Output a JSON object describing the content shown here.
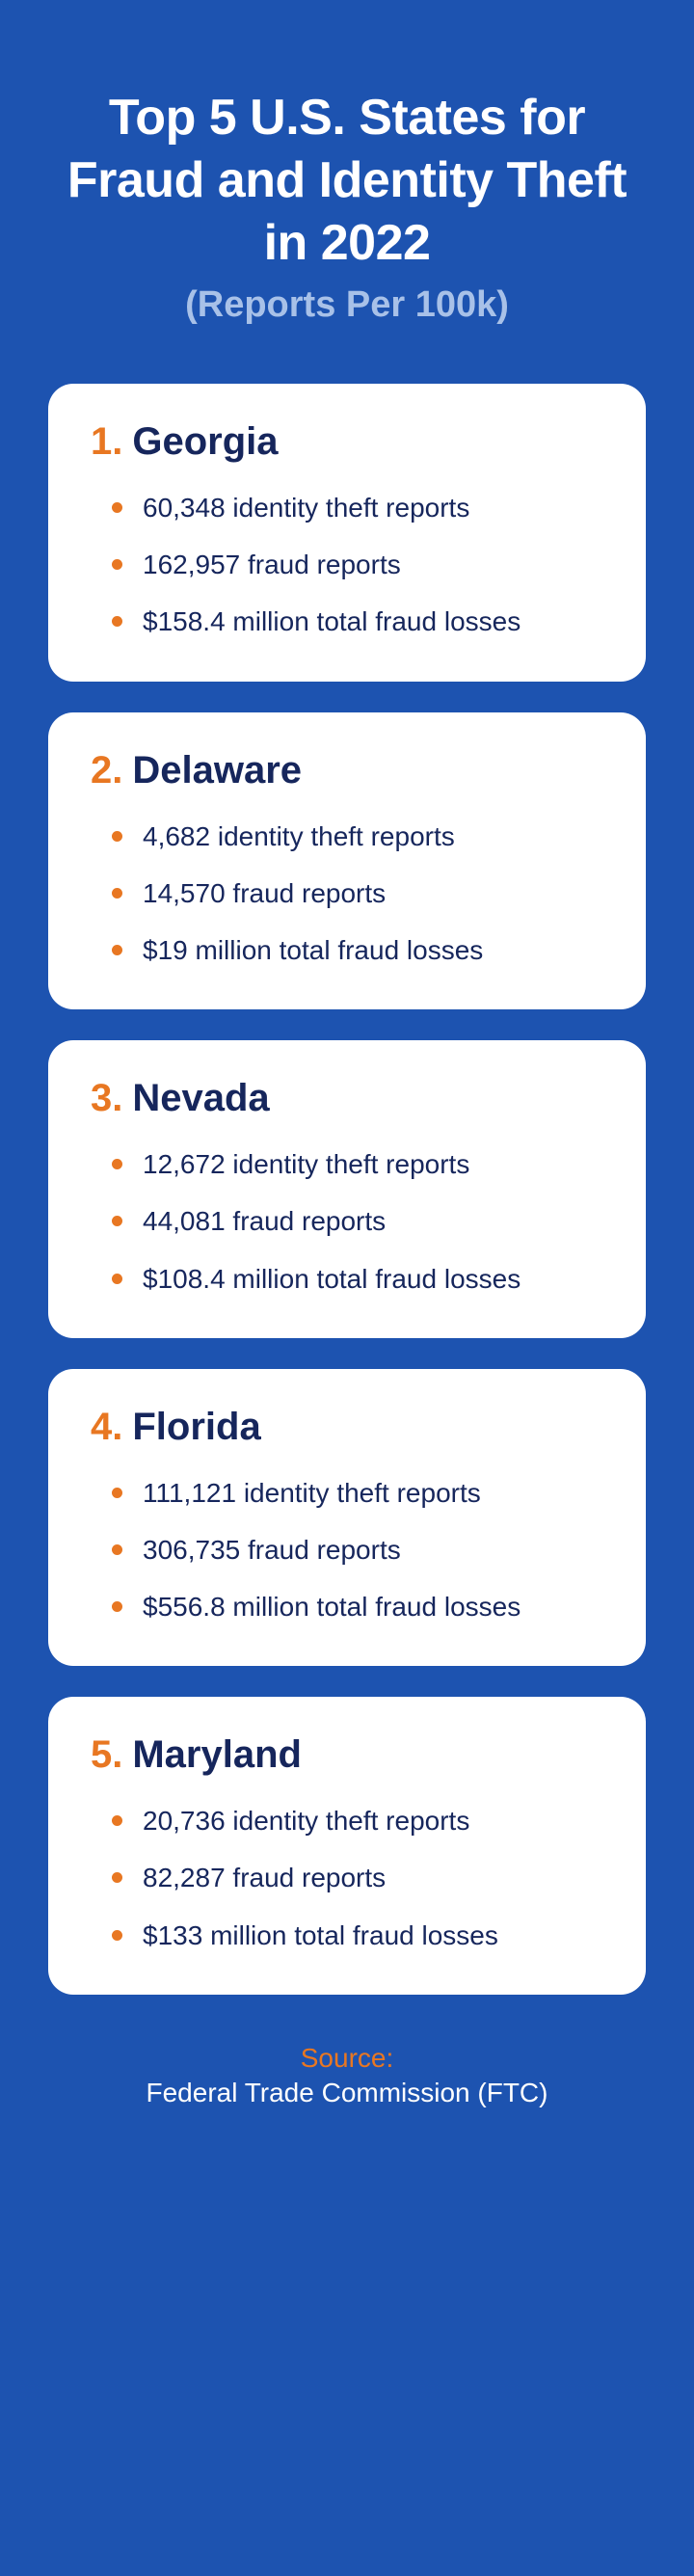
{
  "header": {
    "title": "Top 5 U.S. States for Fraud and Identity Theft in 2022",
    "subtitle": "(Reports Per 100k)"
  },
  "colors": {
    "background": "#1d53b0",
    "card_bg": "#ffffff",
    "title_text": "#ffffff",
    "subtitle_text": "#a8c1e8",
    "accent": "#e87722",
    "body_text": "#16265c"
  },
  "states": [
    {
      "rank": "1.",
      "name": "Georgia",
      "stats": [
        "60,348 identity theft reports",
        "162,957 fraud reports",
        "$158.4 million total fraud losses"
      ]
    },
    {
      "rank": "2.",
      "name": "Delaware",
      "stats": [
        "4,682 identity theft reports",
        "14,570 fraud reports",
        "$19 million total fraud losses"
      ]
    },
    {
      "rank": "3.",
      "name": "Nevada",
      "stats": [
        "12,672 identity theft reports",
        "44,081 fraud reports",
        "$108.4 million total fraud losses"
      ]
    },
    {
      "rank": "4.",
      "name": "Florida",
      "stats": [
        "111,121 identity theft reports",
        "306,735 fraud reports",
        "$556.8 million total fraud losses"
      ]
    },
    {
      "rank": "5.",
      "name": "Maryland",
      "stats": [
        "20,736 identity theft reports",
        "82,287 fraud reports",
        "$133 million total fraud losses"
      ]
    }
  ],
  "footer": {
    "source_label": "Source:",
    "source_name": "Federal Trade Commission (FTC)"
  }
}
